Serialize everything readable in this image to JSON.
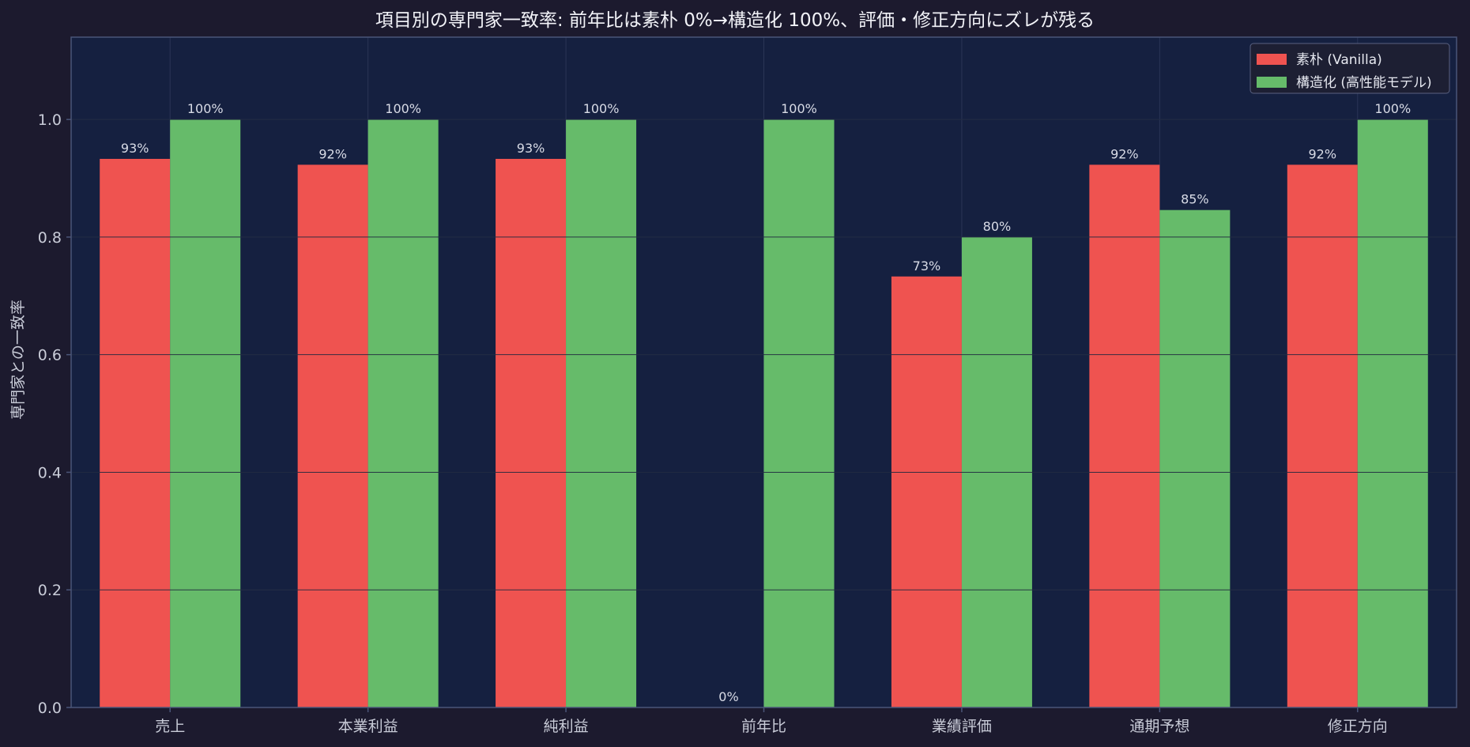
{
  "chart_data": {
    "type": "bar",
    "title": "項目別の専門家一致率: 前年比は素朴 0%→構造化 100%、評価・修正方向にズレが残る",
    "xlabel": "",
    "ylabel": "専門家との一致率",
    "categories": [
      "売上",
      "本業利益",
      "純利益",
      "前年比",
      "業績評価",
      "通期予想",
      "修正方向"
    ],
    "series": [
      {
        "name": "素朴 (Vanilla)",
        "color": "#ef5350",
        "values": [
          0.933,
          0.923,
          0.933,
          0.0,
          0.733,
          0.923,
          0.923
        ],
        "labels": [
          "93%",
          "92%",
          "93%",
          "0%",
          "73%",
          "92%",
          "92%"
        ]
      },
      {
        "name": "構造化 (高性能モデル)",
        "color": "#66bb6a",
        "values": [
          1.0,
          1.0,
          1.0,
          1.0,
          0.8,
          0.846,
          1.0
        ],
        "labels": [
          "100%",
          "100%",
          "100%",
          "100%",
          "80%",
          "85%",
          "100%"
        ]
      }
    ],
    "ylim": [
      0,
      1.14
    ],
    "yticks": [
      "0.0",
      "0.2",
      "0.4",
      "0.6",
      "0.8",
      "1.0"
    ],
    "legend_position": "top-right",
    "grid": true,
    "colors": {
      "page_background": "#1c1a2e",
      "plot_background": "#152040",
      "grid": "#2a3556",
      "axis": "#4a5578"
    }
  }
}
